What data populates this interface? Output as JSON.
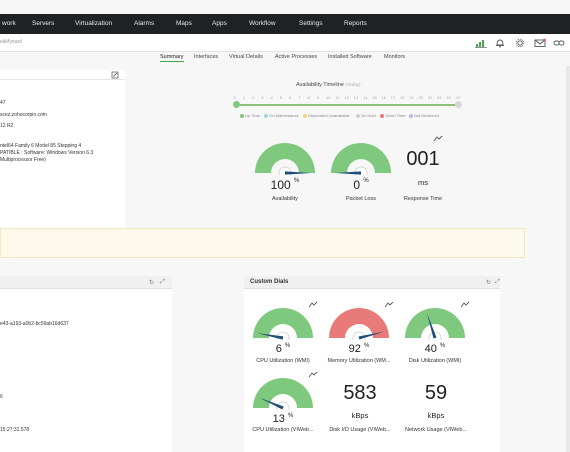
{
  "colors": {
    "nav_bg": "#1f2125",
    "gauge_green": "#7fc97f",
    "gauge_red": "#e87a7a",
    "needle": "#1f4e79",
    "timeline_green": "#8fc07a"
  },
  "nav": {
    "items": [
      "work",
      "Servers",
      "Virtualization",
      "Alarms",
      "Maps",
      "Apps",
      "Workflow",
      "Settings",
      "Reports"
    ]
  },
  "breadcrumb": "ekMyeard",
  "toolbar_icons": [
    "chart-icon",
    "alarm-bell-icon",
    "settings-icon",
    "mail-icon",
    "link-icon"
  ],
  "tabs": [
    "Summary",
    "Interfaces",
    "Virtual Details",
    "Active Processes",
    "Installed Software",
    "Monitors"
  ],
  "info": {
    "lines": [
      "47",
      "scez,zohocorpin.com",
      "12 R2",
      "ntel64 Family 6 Model 85 Stepping 4",
      "PATIBLE : Software: Windows Version 6.3",
      "Multiprocessor Free)"
    ]
  },
  "availability": {
    "title": "Availability Timeline",
    "subtitle": "(Today)",
    "hours": [
      "0",
      "1",
      "2",
      "3",
      "4",
      "5",
      "6",
      "7",
      "8",
      "9",
      "10",
      "11",
      "12",
      "13",
      "14",
      "15",
      "16",
      "17",
      "18",
      "19",
      "20",
      "21",
      "22",
      "23",
      "24"
    ],
    "legend": [
      "Up Time",
      "On Maintenance",
      "Dependent Unavailable",
      "On Hold",
      "Down Time",
      "Not Monitored"
    ],
    "legend_colors": [
      "#7fc97f",
      "#9fd1e8",
      "#f5d67a",
      "#cfcfcf",
      "#e87a7a",
      "#c7b8e6"
    ]
  },
  "top_gauges": [
    {
      "value": "100",
      "unit": "%",
      "label": "Availability",
      "level": 1.0
    },
    {
      "value": "0",
      "unit": "%",
      "label": "Packet Loss",
      "level": 0.0
    }
  ],
  "response_time": {
    "value": "001",
    "unit": "ms",
    "label": "Response Time"
  },
  "lower_left": {
    "lines": [
      "e43-a193-a0b2-bc59ab16d637",
      "6",
      "15:27:31.578"
    ]
  },
  "custom_dials": {
    "title": "Custom Dials",
    "dials": [
      {
        "value": "6",
        "unit": "%",
        "label": "CPU Utilization (WMI)",
        "level": 0.06,
        "color": "#7fc97f"
      },
      {
        "value": "92",
        "unit": "%",
        "label": "Memory Utilization (WM...",
        "level": 0.92,
        "color": "#e87a7a"
      },
      {
        "value": "40",
        "unit": "%",
        "label": "Disk Utilization (WMI)",
        "level": 0.4,
        "color": "#7fc97f"
      },
      {
        "value": "13",
        "unit": "%",
        "label": "CPU Utilization (VIWeb...",
        "level": 0.13,
        "color": "#7fc97f"
      }
    ],
    "numbers": [
      {
        "value": "583",
        "unit": "kBps",
        "label": "Disk I/O Usage (VIWeb..."
      },
      {
        "value": "59",
        "unit": "kBps",
        "label": "Network Usage (VIWeb..."
      }
    ]
  }
}
